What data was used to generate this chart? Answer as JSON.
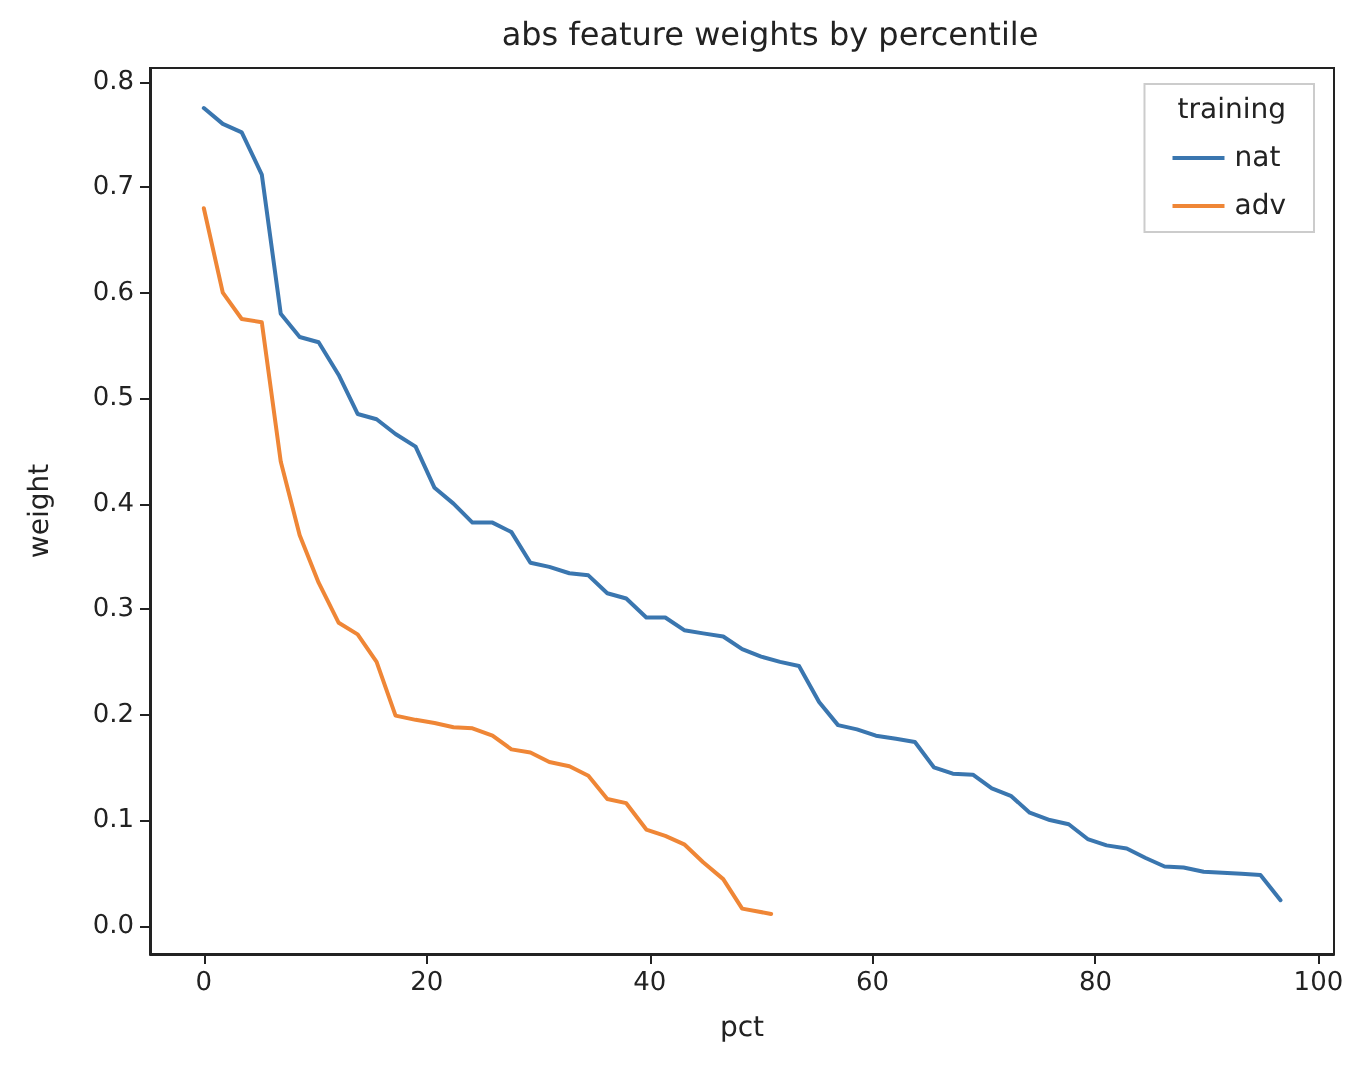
{
  "chart_data": {
    "type": "line",
    "title": "abs feature weights by percentile",
    "xlabel": "pct",
    "ylabel": "weight",
    "legend_title": "training",
    "legend": "top right",
    "grid": false,
    "marker": "none",
    "line_style": "solid",
    "xlim": [
      -4.83,
      101.4
    ],
    "xticks": [
      0,
      20,
      40,
      60,
      80,
      100
    ],
    "ylim": [
      -0.027,
      0.813
    ],
    "yticks": [
      {
        "value": 0,
        "label": "0.0"
      },
      {
        "value": 0.1,
        "label": "0.1"
      },
      {
        "value": 0.2,
        "label": "0.2"
      },
      {
        "value": 0.3,
        "label": "0.3"
      },
      {
        "value": 0.4,
        "label": "0.4"
      },
      {
        "value": 0.5,
        "label": "0.5"
      },
      {
        "value": 0.6,
        "label": "0.6"
      },
      {
        "value": 0.7,
        "label": "0.7"
      },
      {
        "value": 0.8,
        "label": "0.8"
      }
    ],
    "series": [
      {
        "name": "nat",
        "color": "#3a76af",
        "x": [
          0,
          1.7,
          3.4,
          5.2,
          6.9,
          8.6,
          10.3,
          12.1,
          13.8,
          15.5,
          17.2,
          19.0,
          20.7,
          22.4,
          24.1,
          25.9,
          27.6,
          29.3,
          31.0,
          32.8,
          34.5,
          36.2,
          37.9,
          39.7,
          41.4,
          43.1,
          44.8,
          46.6,
          48.3,
          50.0,
          51.7,
          53.4,
          55.2,
          56.9,
          58.6,
          60.3,
          62.1,
          63.8,
          65.5,
          67.2,
          69.0,
          70.7,
          72.4,
          74.1,
          75.9,
          77.6,
          79.3,
          81.0,
          82.8,
          84.5,
          86.2,
          87.9,
          89.7,
          91.4,
          93.1,
          94.8,
          96.6
        ],
        "values": [
          0.775,
          0.76,
          0.752,
          0.712,
          0.58,
          0.558,
          0.553,
          0.522,
          0.485,
          0.48,
          0.466,
          0.454,
          0.415,
          0.4,
          0.382,
          0.382,
          0.373,
          0.344,
          0.34,
          0.334,
          0.332,
          0.315,
          0.31,
          0.292,
          0.292,
          0.28,
          0.277,
          0.274,
          0.262,
          0.255,
          0.25,
          0.246,
          0.212,
          0.19,
          0.186,
          0.18,
          0.177,
          0.174,
          0.15,
          0.144,
          0.143,
          0.13,
          0.123,
          0.107,
          0.1,
          0.096,
          0.082,
          0.076,
          0.073,
          0.064,
          0.056,
          0.055,
          0.051,
          0.05,
          0.049,
          0.048,
          0.024
        ]
      },
      {
        "name": "adv",
        "color": "#ef8636",
        "x": [
          0,
          1.7,
          3.4,
          5.2,
          6.9,
          8.6,
          10.3,
          12.1,
          13.8,
          15.5,
          17.2,
          19.0,
          20.7,
          22.4,
          24.1,
          25.9,
          27.6,
          29.3,
          31.0,
          32.8,
          34.5,
          36.2,
          37.9,
          39.7,
          41.4,
          43.1,
          44.8,
          46.6,
          48.3,
          50.9
        ],
        "values": [
          0.68,
          0.6,
          0.575,
          0.572,
          0.44,
          0.37,
          0.325,
          0.287,
          0.276,
          0.25,
          0.199,
          0.195,
          0.192,
          0.188,
          0.187,
          0.18,
          0.167,
          0.164,
          0.155,
          0.151,
          0.142,
          0.12,
          0.116,
          0.091,
          0.085,
          0.077,
          0.06,
          0.044,
          0.016,
          0.011
        ]
      }
    ]
  }
}
